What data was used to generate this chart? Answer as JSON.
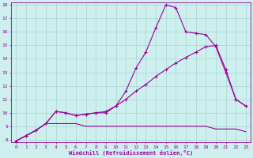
{
  "title": "",
  "xlabel": "Windchill (Refroidissement éolien,°C)",
  "ylabel": "",
  "background_color": "#cdf0ee",
  "line_color": "#990099",
  "grid_color": "#b0d8d4",
  "xlim": [
    -0.5,
    23.5
  ],
  "ylim": [
    7.8,
    18.2
  ],
  "yticks": [
    8,
    9,
    10,
    11,
    12,
    13,
    14,
    15,
    16,
    17,
    18
  ],
  "xticks": [
    0,
    1,
    2,
    3,
    4,
    5,
    6,
    7,
    8,
    9,
    10,
    11,
    12,
    13,
    14,
    15,
    16,
    17,
    18,
    19,
    20,
    21,
    22,
    23
  ],
  "series1_x": [
    0,
    1,
    2,
    3,
    4,
    5,
    6,
    7,
    8,
    9,
    10,
    11,
    12,
    13,
    14,
    15,
    16,
    17,
    18,
    19,
    20,
    21,
    22,
    23
  ],
  "series1_y": [
    7.9,
    8.3,
    8.7,
    9.2,
    10.1,
    10.0,
    9.8,
    9.9,
    10.0,
    10.0,
    10.5,
    11.6,
    13.3,
    14.5,
    16.3,
    18.0,
    17.8,
    16.0,
    15.9,
    15.8,
    14.9,
    13.0,
    11.0,
    10.5
  ],
  "series2_x": [
    0,
    1,
    2,
    3,
    4,
    5,
    6,
    7,
    8,
    9,
    10,
    11,
    12,
    13,
    14,
    15,
    16,
    17,
    18,
    19,
    20,
    21,
    22,
    23
  ],
  "series2_y": [
    7.9,
    8.3,
    8.7,
    9.2,
    10.1,
    10.0,
    9.8,
    9.9,
    10.0,
    10.1,
    10.5,
    11.0,
    11.6,
    12.1,
    12.7,
    13.2,
    13.7,
    14.1,
    14.5,
    14.9,
    15.0,
    13.2,
    11.0,
    10.5
  ],
  "series3_x": [
    0,
    1,
    2,
    3,
    4,
    5,
    6,
    7,
    8,
    9,
    10,
    11,
    12,
    13,
    14,
    15,
    16,
    17,
    18,
    19,
    20,
    21,
    22,
    23
  ],
  "series3_y": [
    7.9,
    8.3,
    8.7,
    9.2,
    9.2,
    9.2,
    9.2,
    9.0,
    9.0,
    9.0,
    9.0,
    9.0,
    9.0,
    9.0,
    9.0,
    9.0,
    9.0,
    9.0,
    9.0,
    9.0,
    8.8,
    8.8,
    8.8,
    8.6
  ]
}
